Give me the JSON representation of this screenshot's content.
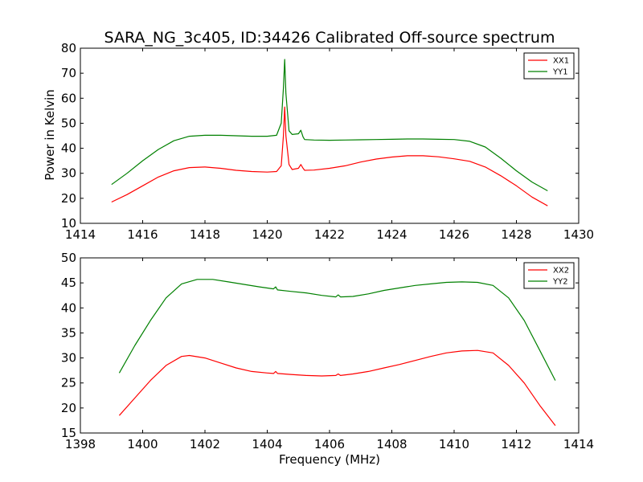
{
  "chart_data": [
    {
      "type": "line",
      "title": "SARA_NG_3c405, ID:34426 Calibrated Off-source spectrum",
      "xlabel": "",
      "ylabel": "Power in Kelvin",
      "xlim": [
        1414,
        1430
      ],
      "ylim": [
        10,
        80
      ],
      "xticks": [
        1414,
        1416,
        1418,
        1420,
        1422,
        1424,
        1426,
        1428,
        1430
      ],
      "yticks": [
        10,
        20,
        30,
        40,
        50,
        60,
        70,
        80
      ],
      "grid": false,
      "legend_position": "top-right",
      "series": [
        {
          "name": "XX1",
          "color": "#ff0000",
          "points": [
            [
              1415.0,
              18.5
            ],
            [
              1415.5,
              21.5
            ],
            [
              1416.0,
              25.0
            ],
            [
              1416.5,
              28.5
            ],
            [
              1417.0,
              31.0
            ],
            [
              1417.5,
              32.3
            ],
            [
              1418.0,
              32.5
            ],
            [
              1418.5,
              32.0
            ],
            [
              1419.0,
              31.2
            ],
            [
              1419.5,
              30.7
            ],
            [
              1420.0,
              30.5
            ],
            [
              1420.3,
              30.7
            ],
            [
              1420.45,
              33.0
            ],
            [
              1420.52,
              45.0
            ],
            [
              1420.56,
              56.5
            ],
            [
              1420.6,
              45.0
            ],
            [
              1420.7,
              33.5
            ],
            [
              1420.8,
              31.5
            ],
            [
              1421.0,
              32.0
            ],
            [
              1421.08,
              33.5
            ],
            [
              1421.15,
              32.0
            ],
            [
              1421.2,
              31.2
            ],
            [
              1421.5,
              31.3
            ],
            [
              1422.0,
              32.0
            ],
            [
              1422.5,
              33.0
            ],
            [
              1423.0,
              34.5
            ],
            [
              1423.5,
              35.7
            ],
            [
              1424.0,
              36.5
            ],
            [
              1424.5,
              37.0
            ],
            [
              1425.0,
              37.0
            ],
            [
              1425.5,
              36.6
            ],
            [
              1426.0,
              35.8
            ],
            [
              1426.5,
              34.8
            ],
            [
              1427.0,
              32.5
            ],
            [
              1427.5,
              29.0
            ],
            [
              1428.0,
              25.0
            ],
            [
              1428.5,
              20.5
            ],
            [
              1429.0,
              17.0
            ]
          ]
        },
        {
          "name": "YY1",
          "color": "#008000",
          "points": [
            [
              1415.0,
              25.5
            ],
            [
              1415.5,
              30.0
            ],
            [
              1416.0,
              35.0
            ],
            [
              1416.5,
              39.5
            ],
            [
              1417.0,
              43.0
            ],
            [
              1417.5,
              44.8
            ],
            [
              1418.0,
              45.2
            ],
            [
              1418.5,
              45.2
            ],
            [
              1419.0,
              45.0
            ],
            [
              1419.5,
              44.8
            ],
            [
              1420.0,
              44.8
            ],
            [
              1420.3,
              45.2
            ],
            [
              1420.45,
              50.0
            ],
            [
              1420.52,
              64.0
            ],
            [
              1420.56,
              75.5
            ],
            [
              1420.6,
              62.0
            ],
            [
              1420.7,
              47.0
            ],
            [
              1420.8,
              45.5
            ],
            [
              1421.0,
              45.8
            ],
            [
              1421.08,
              47.2
            ],
            [
              1421.15,
              44.5
            ],
            [
              1421.2,
              43.5
            ],
            [
              1421.5,
              43.3
            ],
            [
              1422.0,
              43.2
            ],
            [
              1422.5,
              43.3
            ],
            [
              1423.0,
              43.4
            ],
            [
              1423.5,
              43.5
            ],
            [
              1424.0,
              43.6
            ],
            [
              1424.5,
              43.7
            ],
            [
              1425.0,
              43.7
            ],
            [
              1425.5,
              43.6
            ],
            [
              1426.0,
              43.5
            ],
            [
              1426.5,
              42.8
            ],
            [
              1427.0,
              40.5
            ],
            [
              1427.5,
              36.0
            ],
            [
              1428.0,
              31.0
            ],
            [
              1428.5,
              26.5
            ],
            [
              1429.0,
              23.0
            ]
          ]
        }
      ]
    },
    {
      "type": "line",
      "title": "",
      "xlabel": "Frequency (MHz)",
      "ylabel": "",
      "xlim": [
        1398,
        1414
      ],
      "ylim": [
        15,
        50
      ],
      "xticks": [
        1398,
        1400,
        1402,
        1404,
        1406,
        1408,
        1410,
        1412,
        1414
      ],
      "yticks": [
        15,
        20,
        25,
        30,
        35,
        40,
        45,
        50
      ],
      "grid": false,
      "legend_position": "top-right",
      "series": [
        {
          "name": "XX2",
          "color": "#ff0000",
          "points": [
            [
              1399.25,
              18.5
            ],
            [
              1399.75,
              22.0
            ],
            [
              1400.25,
              25.5
            ],
            [
              1400.75,
              28.5
            ],
            [
              1401.25,
              30.3
            ],
            [
              1401.5,
              30.5
            ],
            [
              1402.0,
              30.0
            ],
            [
              1402.5,
              29.0
            ],
            [
              1403.0,
              28.0
            ],
            [
              1403.5,
              27.3
            ],
            [
              1404.0,
              27.0
            ],
            [
              1404.2,
              26.9
            ],
            [
              1404.27,
              27.3
            ],
            [
              1404.33,
              26.9
            ],
            [
              1404.75,
              26.7
            ],
            [
              1405.25,
              26.5
            ],
            [
              1405.75,
              26.4
            ],
            [
              1406.2,
              26.5
            ],
            [
              1406.28,
              26.8
            ],
            [
              1406.35,
              26.5
            ],
            [
              1406.75,
              26.8
            ],
            [
              1407.25,
              27.3
            ],
            [
              1407.75,
              28.0
            ],
            [
              1408.25,
              28.7
            ],
            [
              1408.75,
              29.5
            ],
            [
              1409.25,
              30.3
            ],
            [
              1409.75,
              31.0
            ],
            [
              1410.25,
              31.4
            ],
            [
              1410.75,
              31.5
            ],
            [
              1411.25,
              31.0
            ],
            [
              1411.75,
              28.5
            ],
            [
              1412.25,
              25.0
            ],
            [
              1412.75,
              20.5
            ],
            [
              1413.25,
              16.5
            ]
          ]
        },
        {
          "name": "YY2",
          "color": "#008000",
          "points": [
            [
              1399.25,
              27.0
            ],
            [
              1399.75,
              32.5
            ],
            [
              1400.25,
              37.5
            ],
            [
              1400.75,
              42.0
            ],
            [
              1401.25,
              44.8
            ],
            [
              1401.75,
              45.7
            ],
            [
              1402.25,
              45.7
            ],
            [
              1402.75,
              45.2
            ],
            [
              1403.25,
              44.7
            ],
            [
              1403.75,
              44.2
            ],
            [
              1404.2,
              43.8
            ],
            [
              1404.27,
              44.2
            ],
            [
              1404.33,
              43.6
            ],
            [
              1404.75,
              43.3
            ],
            [
              1405.25,
              43.0
            ],
            [
              1405.75,
              42.5
            ],
            [
              1406.2,
              42.2
            ],
            [
              1406.28,
              42.6
            ],
            [
              1406.35,
              42.2
            ],
            [
              1406.75,
              42.3
            ],
            [
              1407.25,
              42.8
            ],
            [
              1407.75,
              43.5
            ],
            [
              1408.25,
              44.0
            ],
            [
              1408.75,
              44.5
            ],
            [
              1409.25,
              44.8
            ],
            [
              1409.75,
              45.1
            ],
            [
              1410.25,
              45.2
            ],
            [
              1410.75,
              45.1
            ],
            [
              1411.25,
              44.5
            ],
            [
              1411.75,
              42.0
            ],
            [
              1412.25,
              37.5
            ],
            [
              1412.75,
              31.5
            ],
            [
              1413.25,
              25.5
            ]
          ]
        }
      ]
    }
  ]
}
